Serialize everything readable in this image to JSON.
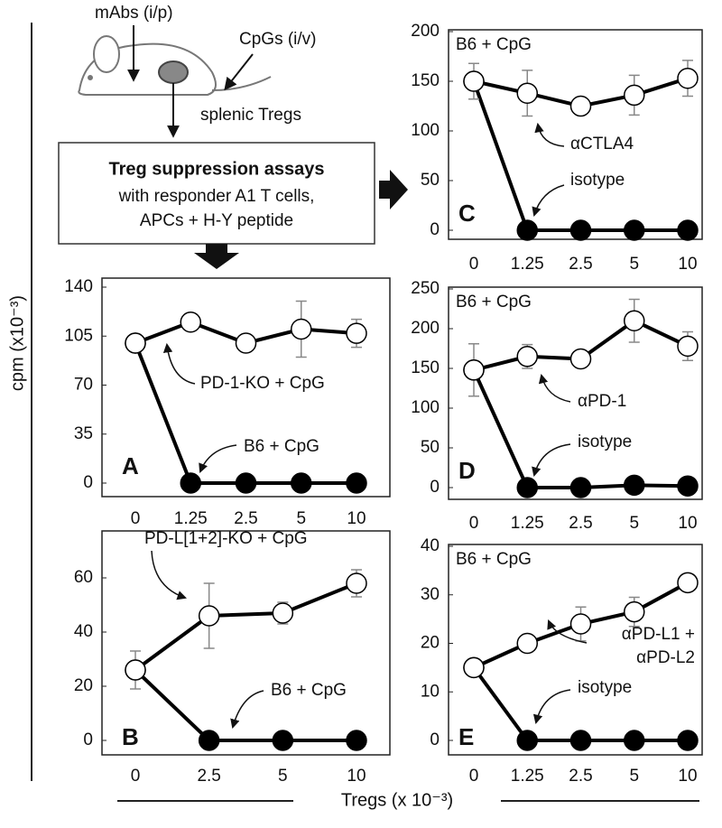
{
  "chart_data": [
    {
      "type": "line",
      "label": "A",
      "categories": [
        "0",
        "1.25",
        "2.5",
        "5",
        "10"
      ],
      "ylim": [
        0,
        140
      ],
      "yticks": [
        0,
        35,
        70,
        105,
        140
      ],
      "series": [
        {
          "name": "B6 + CpG",
          "color": "#000000",
          "fill": "#000000",
          "values": [
            100,
            0,
            0,
            0,
            0
          ],
          "errors": [
            0,
            0,
            0,
            0,
            0
          ]
        },
        {
          "name": "PD-1-KO + CpG",
          "color": "#000000",
          "fill": "#ffffff",
          "values": [
            100,
            115,
            100,
            110,
            107
          ],
          "errors": [
            0,
            0,
            0,
            20,
            10
          ]
        }
      ]
    },
    {
      "type": "line",
      "label": "B",
      "categories": [
        "0",
        "2.5",
        "5",
        "10"
      ],
      "ylim": [
        0,
        70
      ],
      "yticks": [
        0,
        20,
        40,
        60
      ],
      "series": [
        {
          "name": "B6 + CpG",
          "color": "#000000",
          "fill": "#000000",
          "values": [
            26,
            0,
            0,
            0
          ],
          "errors": [
            0,
            0,
            0,
            0
          ]
        },
        {
          "name": "PD-L[1+2]-KO + CpG",
          "color": "#000000",
          "fill": "#ffffff",
          "values": [
            26,
            46,
            47,
            58
          ],
          "errors": [
            7,
            12,
            4,
            5
          ]
        }
      ]
    },
    {
      "type": "line",
      "label": "C",
      "heading": "B6 + CpG",
      "categories": [
        "0",
        "1.25",
        "2.5",
        "5",
        "10"
      ],
      "ylim": [
        0,
        200
      ],
      "yticks": [
        0,
        50,
        100,
        150,
        200
      ],
      "series": [
        {
          "name": "isotype",
          "color": "#000000",
          "fill": "#000000",
          "values": [
            150,
            0,
            0,
            0,
            0
          ],
          "errors": [
            0,
            0,
            0,
            0,
            0
          ]
        },
        {
          "name": "αCTLA4",
          "color": "#000000",
          "fill": "#ffffff",
          "values": [
            150,
            138,
            125,
            136,
            153
          ],
          "errors": [
            18,
            23,
            0,
            20,
            18
          ]
        }
      ]
    },
    {
      "type": "line",
      "label": "D",
      "heading": "B6 + CpG",
      "categories": [
        "0",
        "1.25",
        "2.5",
        "5",
        "10"
      ],
      "ylim": [
        0,
        250
      ],
      "yticks": [
        0,
        50,
        100,
        150,
        200,
        250
      ],
      "series": [
        {
          "name": "isotype",
          "color": "#000000",
          "fill": "#000000",
          "values": [
            148,
            0,
            0,
            3,
            2
          ],
          "errors": [
            0,
            0,
            0,
            0,
            0
          ]
        },
        {
          "name": "αPD-1",
          "color": "#000000",
          "fill": "#ffffff",
          "values": [
            148,
            165,
            162,
            210,
            178
          ],
          "errors": [
            33,
            15,
            0,
            27,
            18
          ]
        }
      ]
    },
    {
      "type": "line",
      "label": "E",
      "heading": "B6 + CpG",
      "categories": [
        "0",
        "1.25",
        "2.5",
        "5",
        "10"
      ],
      "ylim": [
        0,
        40
      ],
      "yticks": [
        0,
        10,
        20,
        30,
        40
      ],
      "series": [
        {
          "name": "isotype",
          "color": "#000000",
          "fill": "#000000",
          "values": [
            15,
            0,
            0,
            0,
            0
          ],
          "errors": [
            0,
            0,
            0,
            0,
            0
          ]
        },
        {
          "name": "αPD-L1 + αPD-L2",
          "color": "#000000",
          "fill": "#ffffff",
          "values": [
            15,
            20,
            24,
            26.5,
            32.5
          ],
          "errors": [
            0,
            0,
            3.5,
            3,
            0
          ]
        }
      ]
    }
  ],
  "y_label": "cpm (x10⁻³)",
  "x_label": "Tregs (x 10⁻³)",
  "diagram": {
    "mabs": "mAbs (i/p)",
    "cpgs": "CpGs (i/v)",
    "tregs": "splenic Tregs",
    "assay_title": "Treg suppression assays",
    "assay_lines": [
      "with responder A1 T cells,",
      "APCs + H-Y peptide"
    ]
  }
}
